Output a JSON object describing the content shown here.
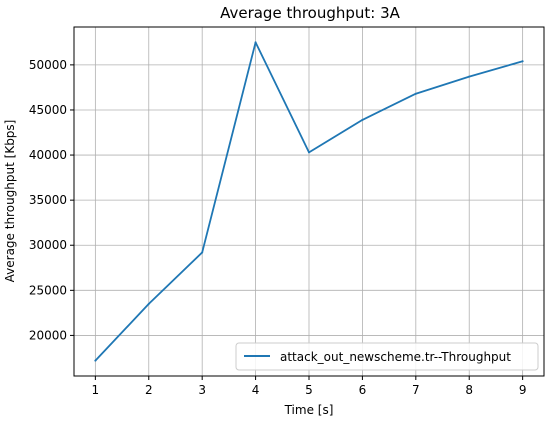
{
  "chart_data": {
    "type": "line",
    "title": "Average throughput: 3A",
    "xlabel": "Time [s]",
    "ylabel": "Average throughput [Kbps]",
    "x": [
      1,
      2,
      3,
      4,
      5,
      6,
      7,
      8,
      9
    ],
    "xticks": [
      1,
      2,
      3,
      4,
      5,
      6,
      7,
      8,
      9
    ],
    "yticks": [
      20000,
      25000,
      30000,
      35000,
      40000,
      45000,
      50000
    ],
    "xlim": [
      0.6,
      9.4
    ],
    "ylim": [
      15500,
      54200
    ],
    "grid": true,
    "legend_position": "bottom-right",
    "series": [
      {
        "name": "attack_out_newscheme.tr--Throughput",
        "color": "#1f77b4",
        "values": [
          17200,
          23500,
          29200,
          52500,
          40300,
          43900,
          46800,
          48700,
          50400
        ]
      }
    ]
  }
}
